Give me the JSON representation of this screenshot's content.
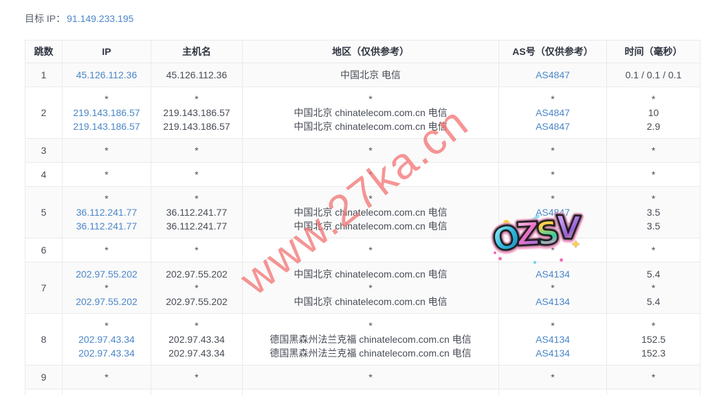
{
  "header": {
    "target_label": "目标 IP：",
    "target_ip": "91.149.233.195"
  },
  "table": {
    "columns": [
      "跳数",
      "IP",
      "主机名",
      "地区（仅供参考）",
      "AS号（仅供参考）",
      "时间（毫秒）"
    ],
    "col_keys": [
      "hop",
      "ip",
      "host",
      "region",
      "asn",
      "time"
    ],
    "rows": [
      {
        "hop": "1",
        "lines": [
          [
            "45.126.112.36",
            "45.126.112.36",
            "中国北京 电信",
            "AS4847",
            "0.1 / 0.1 / 0.1"
          ]
        ]
      },
      {
        "hop": "2",
        "lines": [
          [
            "*",
            "*",
            "*",
            "*",
            "*"
          ],
          [
            "219.143.186.57",
            "219.143.186.57",
            "中国北京 chinatelecom.com.cn 电信",
            "AS4847",
            "10"
          ],
          [
            "219.143.186.57",
            "219.143.186.57",
            "中国北京 chinatelecom.com.cn 电信",
            "AS4847",
            "2.9"
          ]
        ]
      },
      {
        "hop": "3",
        "lines": [
          [
            "*",
            "*",
            "*",
            "*",
            "*"
          ]
        ]
      },
      {
        "hop": "4",
        "lines": [
          [
            "*",
            "*",
            "*",
            "*",
            "*"
          ]
        ]
      },
      {
        "hop": "5",
        "lines": [
          [
            "*",
            "*",
            "*",
            "*",
            "*"
          ],
          [
            "36.112.241.77",
            "36.112.241.77",
            "中国北京 chinatelecom.com.cn 电信",
            "AS4847",
            "3.5"
          ],
          [
            "36.112.241.77",
            "36.112.241.77",
            "中国北京 chinatelecom.com.cn 电信",
            "AS4847",
            "3.5"
          ]
        ]
      },
      {
        "hop": "6",
        "lines": [
          [
            "*",
            "*",
            "*",
            "*",
            "*"
          ]
        ]
      },
      {
        "hop": "7",
        "lines": [
          [
            "202.97.55.202",
            "202.97.55.202",
            "中国北京 chinatelecom.com.cn 电信",
            "AS4134",
            "5.4"
          ],
          [
            "*",
            "*",
            "*",
            "*",
            "*"
          ],
          [
            "202.97.55.202",
            "202.97.55.202",
            "中国北京 chinatelecom.com.cn 电信",
            "AS4134",
            "5.4"
          ]
        ]
      },
      {
        "hop": "8",
        "lines": [
          [
            "*",
            "*",
            "*",
            "*",
            "*"
          ],
          [
            "202.97.43.34",
            "202.97.43.34",
            "德国黑森州法兰克福 chinatelecom.com.cn 电信",
            "AS4134",
            "152.5"
          ],
          [
            "202.97.43.34",
            "202.97.43.34",
            "德国黑森州法兰克福 chinatelecom.com.cn 电信",
            "AS4134",
            "152.3"
          ]
        ]
      },
      {
        "hop": "9",
        "lines": [
          [
            "*",
            "*",
            "*",
            "*",
            "*"
          ]
        ]
      }
    ]
  },
  "watermark": {
    "text": "www.27ka.cn",
    "color": "#f37272"
  },
  "sticker": {
    "text": "OZSV",
    "letters": [
      "O",
      "Z",
      "S",
      "V"
    ]
  },
  "colors": {
    "link": "#4a86c8",
    "border": "#e8eaec",
    "header_bg": "#fbfbfc",
    "alt_row_bg": "#fafafa",
    "text": "#4a4f58"
  }
}
